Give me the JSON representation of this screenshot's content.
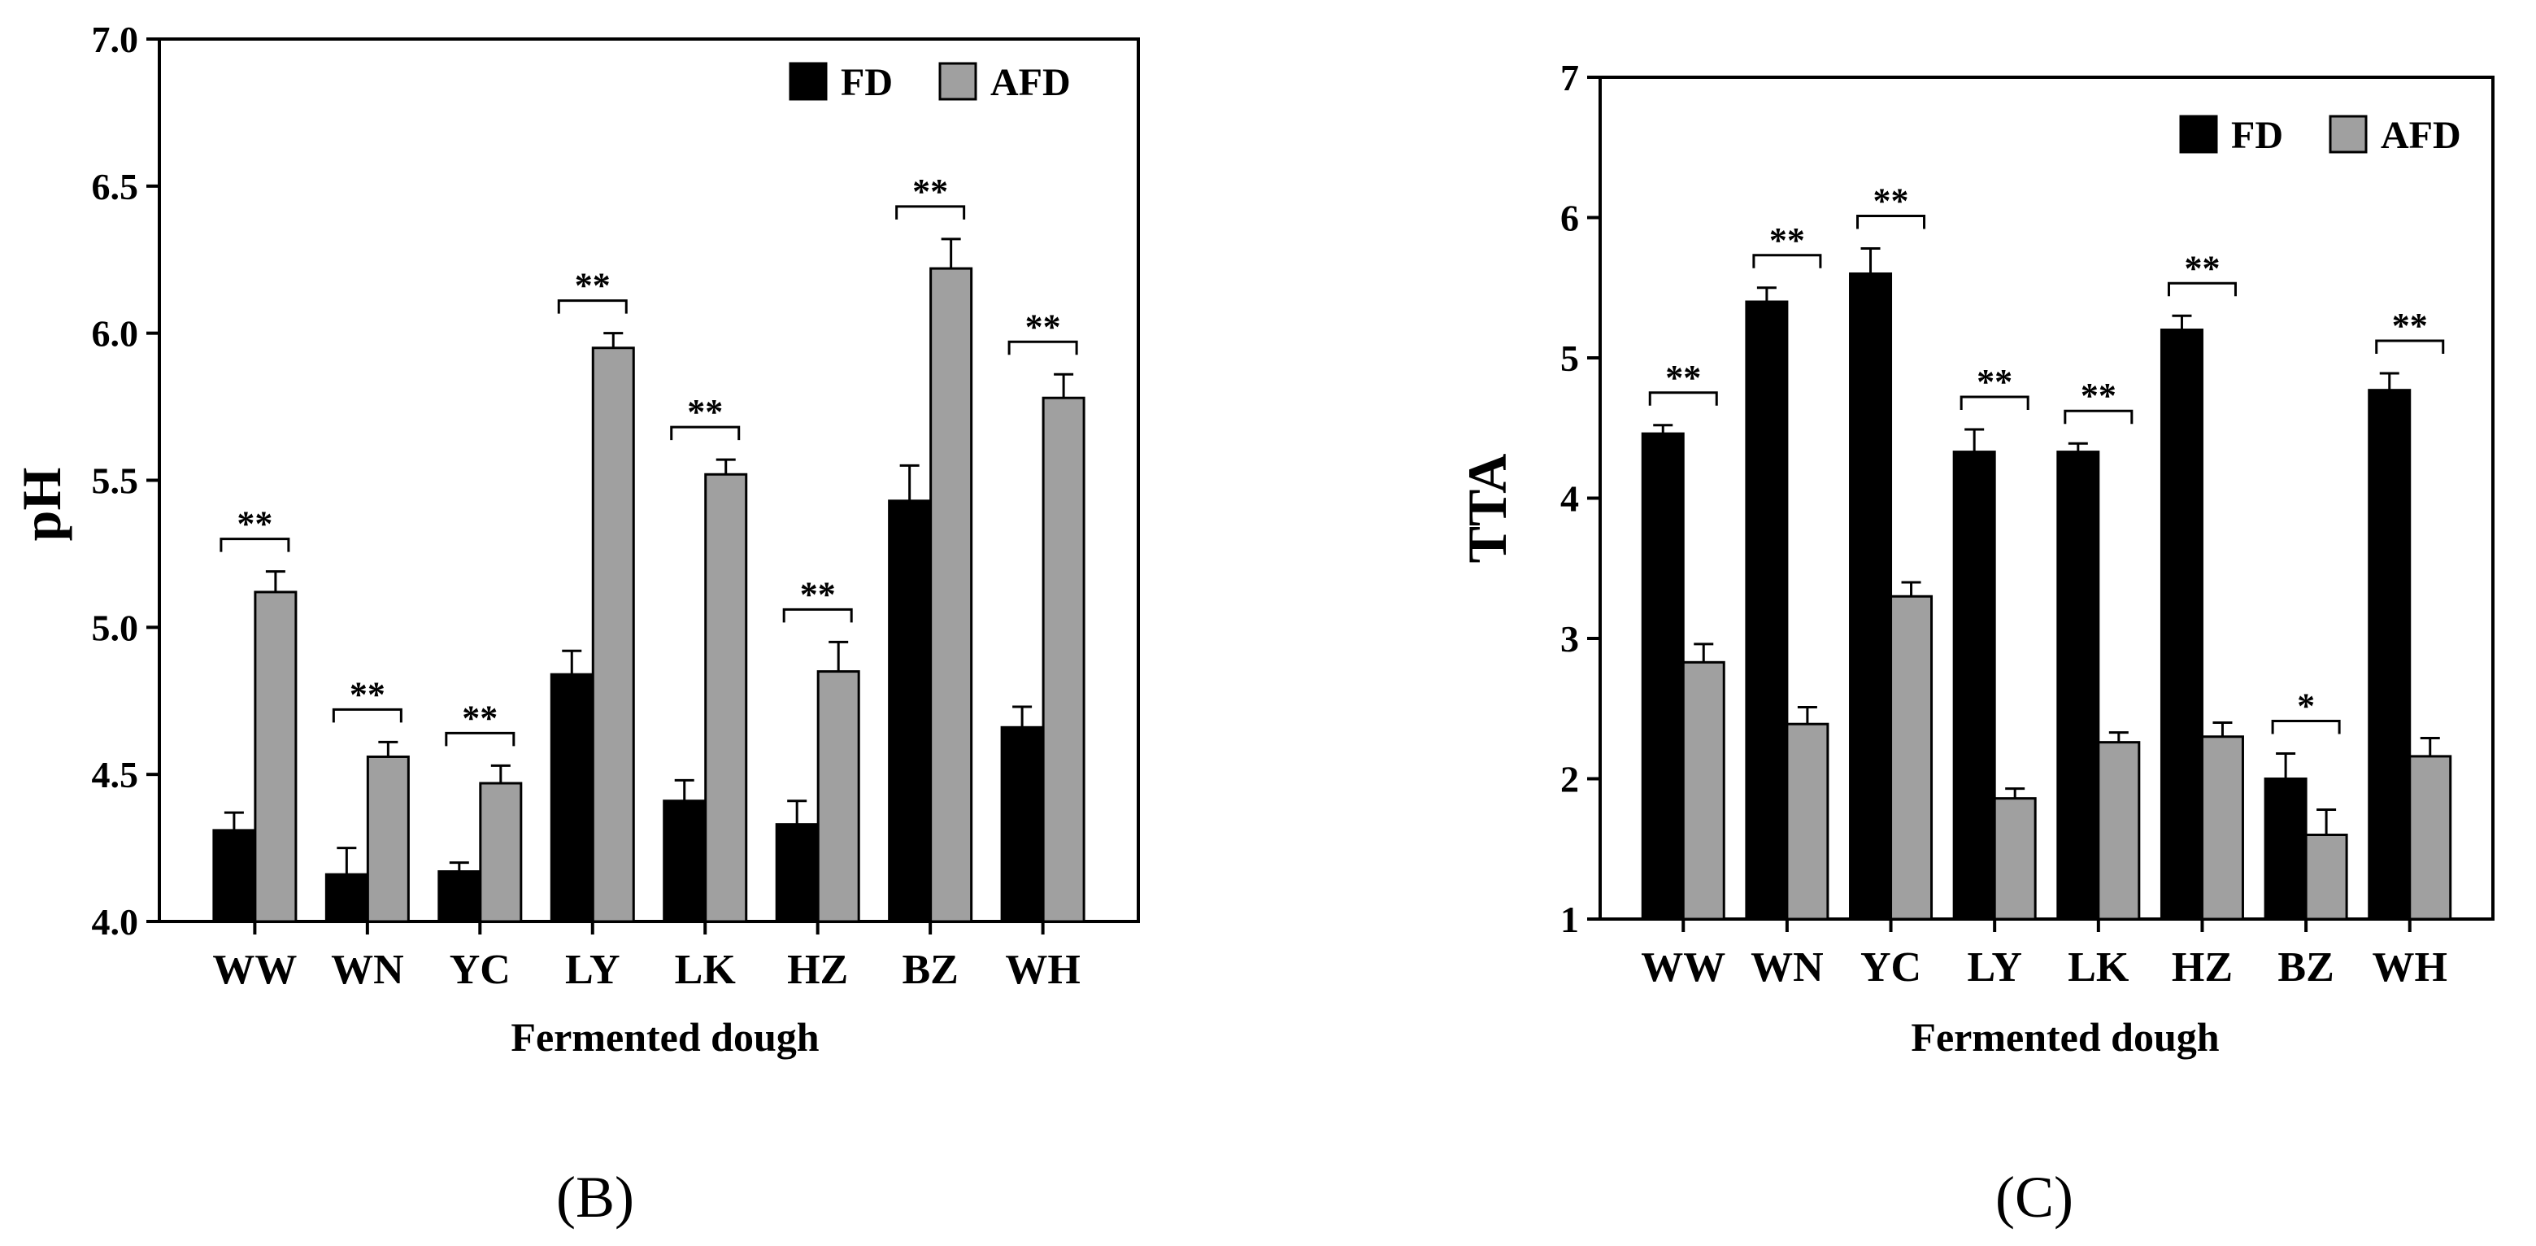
{
  "colors": {
    "FD": "#000000",
    "AFD": "#a0a0a0"
  },
  "chart_data": [
    {
      "type": "bar",
      "panel_label": "(B)",
      "title": "",
      "xlabel": "Fermented dough",
      "ylabel": "pH",
      "ylim": [
        4.0,
        7.0
      ],
      "yticks": [
        "4.0",
        "4.5",
        "5.0",
        "5.5",
        "6.0",
        "6.5",
        "7.0"
      ],
      "categories": [
        "WW",
        "WN",
        "YC",
        "LY",
        "LK",
        "HZ",
        "BZ",
        "WH"
      ],
      "legend": [
        "FD",
        "AFD"
      ],
      "legend_position": "top-right",
      "series": [
        {
          "name": "FD",
          "values": [
            4.31,
            4.16,
            4.17,
            4.84,
            4.41,
            4.33,
            5.43,
            4.66
          ],
          "errors": [
            0.06,
            0.09,
            0.03,
            0.08,
            0.07,
            0.08,
            0.12,
            0.07
          ]
        },
        {
          "name": "AFD",
          "values": [
            5.12,
            4.56,
            4.47,
            5.95,
            5.52,
            4.85,
            6.22,
            5.78
          ],
          "errors": [
            0.07,
            0.05,
            0.06,
            0.05,
            0.05,
            0.1,
            0.1,
            0.08
          ]
        }
      ],
      "significance": [
        "**",
        "**",
        "**",
        "**",
        "**",
        "**",
        "**",
        "**"
      ]
    },
    {
      "type": "bar",
      "panel_label": "(C)",
      "title": "",
      "xlabel": "Fermented dough",
      "ylabel": "TTA",
      "ylim": [
        1,
        7
      ],
      "yticks": [
        "1",
        "2",
        "3",
        "4",
        "5",
        "6",
        "7"
      ],
      "categories": [
        "WW",
        "WN",
        "YC",
        "LY",
        "LK",
        "HZ",
        "BZ",
        "WH"
      ],
      "legend": [
        "FD",
        "AFD"
      ],
      "legend_position": "top-right",
      "series": [
        {
          "name": "FD",
          "values": [
            4.46,
            5.4,
            5.6,
            4.33,
            4.33,
            5.2,
            2.0,
            4.77
          ],
          "errors": [
            0.06,
            0.1,
            0.18,
            0.16,
            0.06,
            0.1,
            0.18,
            0.12
          ]
        },
        {
          "name": "AFD",
          "values": [
            2.83,
            2.39,
            3.3,
            1.86,
            2.26,
            2.3,
            1.6,
            2.16
          ],
          "errors": [
            0.13,
            0.12,
            0.1,
            0.07,
            0.07,
            0.1,
            0.18,
            0.13
          ]
        }
      ],
      "significance": [
        "**",
        "**",
        "**",
        "**",
        "**",
        "**",
        "*",
        "**"
      ]
    }
  ]
}
